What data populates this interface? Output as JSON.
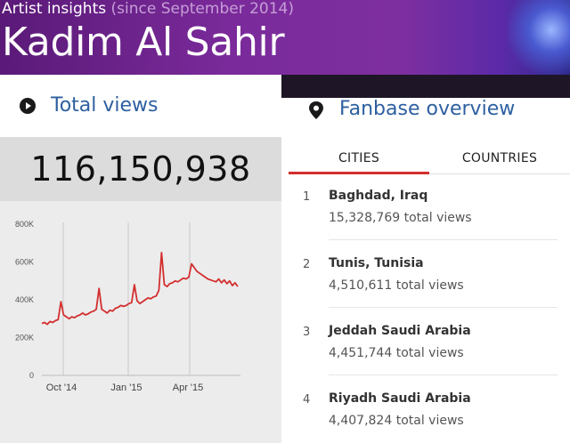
{
  "header": {
    "subtitle": "Artist insights",
    "since": "(since September 2014)",
    "artist": "Kadim Al Sahir"
  },
  "total_views": {
    "title": "Total views",
    "value": "116,150,938",
    "icon": "play-circle-icon"
  },
  "chart_data": {
    "type": "line",
    "title": "",
    "xlabel": "",
    "ylabel": "",
    "ylim": [
      0,
      800000
    ],
    "y_ticks": [
      "0",
      "200K",
      "400K",
      "600K",
      "800K"
    ],
    "x_ticks": [
      "Oct '14",
      "Jan '15",
      "Apr '15"
    ],
    "grid": "vertical",
    "color": "#d32f2f",
    "series": [
      {
        "values": [
          275000,
          280000,
          270000,
          285000,
          280000,
          290000,
          295000,
          390000,
          320000,
          310000,
          300000,
          310000,
          305000,
          315000,
          320000,
          330000,
          320000,
          325000,
          335000,
          340000,
          350000,
          460000,
          350000,
          340000,
          330000,
          345000,
          340000,
          355000,
          360000,
          370000,
          365000,
          370000,
          380000,
          385000,
          480000,
          395000,
          380000,
          390000,
          400000,
          410000,
          405000,
          415000,
          420000,
          450000,
          650000,
          480000,
          470000,
          485000,
          490000,
          500000,
          495000,
          505000,
          515000,
          510000,
          520000,
          590000,
          570000,
          550000,
          540000,
          530000,
          520000,
          510000,
          505000,
          500000,
          495000,
          510000,
          490000,
          505000,
          485000,
          500000,
          475000,
          490000,
          470000
        ]
      }
    ]
  },
  "fanbase": {
    "title": "Fanbase overview",
    "icon": "location-pin-icon",
    "tabs": [
      "CITIES",
      "COUNTRIES"
    ],
    "cities": [
      {
        "rank": "1",
        "name": "Baghdad, Iraq",
        "views": "15,328,769 total views"
      },
      {
        "rank": "2",
        "name": "Tunis, Tunisia",
        "views": "4,510,611 total views"
      },
      {
        "rank": "3",
        "name": "Jeddah Saudi Arabia",
        "views": "4,451,744 total views"
      },
      {
        "rank": "4",
        "name": "Riyadh Saudi Arabia",
        "views": "4,407,824 total views"
      }
    ]
  }
}
